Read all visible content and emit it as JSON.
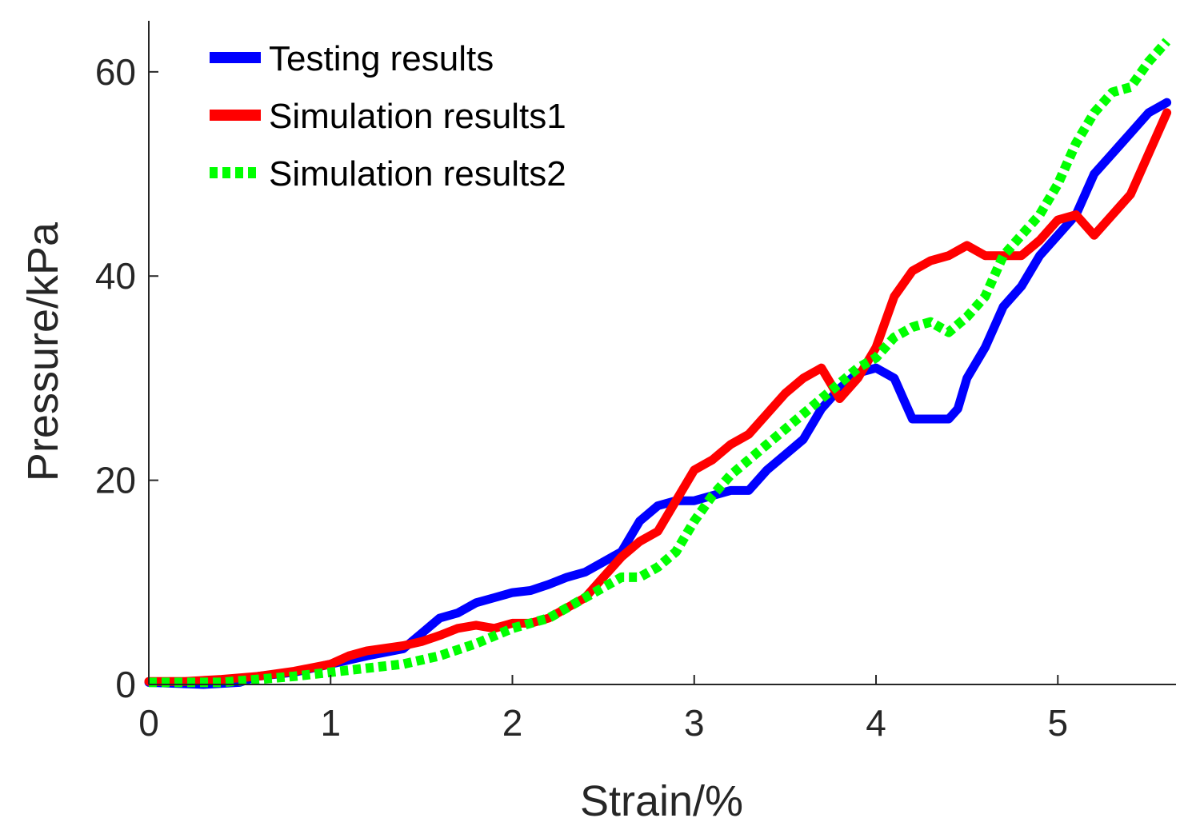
{
  "chart_data": {
    "type": "line",
    "xlabel": "Strain/%",
    "ylabel": "Pressure/kPa",
    "xlim": [
      0,
      5.65
    ],
    "ylim": [
      0,
      65
    ],
    "x_ticks": [
      "0",
      "1",
      "2",
      "3",
      "4",
      "5"
    ],
    "y_ticks": [
      "0",
      "20",
      "40",
      "60"
    ],
    "grid": false,
    "legend_position": "top-left",
    "series": [
      {
        "name": "Testing results",
        "color": "#0000ff",
        "style": "solid",
        "x": [
          0.0,
          0.3,
          0.5,
          0.6,
          0.8,
          1.0,
          1.2,
          1.4,
          1.5,
          1.6,
          1.7,
          1.8,
          1.9,
          2.0,
          2.1,
          2.2,
          2.3,
          2.4,
          2.5,
          2.6,
          2.7,
          2.8,
          2.9,
          3.0,
          3.1,
          3.2,
          3.3,
          3.4,
          3.5,
          3.6,
          3.7,
          3.8,
          3.9,
          4.0,
          4.1,
          4.15,
          4.2,
          4.3,
          4.4,
          4.45,
          4.5,
          4.6,
          4.7,
          4.8,
          4.9,
          5.0,
          5.1,
          5.2,
          5.3,
          5.4,
          5.5,
          5.6
        ],
        "y": [
          0.2,
          0.0,
          0.2,
          0.8,
          1.2,
          2.0,
          2.8,
          3.5,
          5.0,
          6.5,
          7.0,
          8.0,
          8.5,
          9.0,
          9.2,
          9.8,
          10.5,
          11.0,
          12.0,
          13.0,
          16.0,
          17.5,
          18.0,
          18.0,
          18.5,
          19.0,
          19.0,
          21.0,
          22.5,
          24.0,
          27.0,
          29.0,
          30.5,
          31.0,
          30.0,
          28.0,
          26.0,
          26.0,
          26.0,
          27.0,
          30.0,
          33.0,
          37.0,
          39.0,
          42.0,
          44.0,
          46.0,
          50.0,
          52.0,
          54.0,
          56.0,
          57.0
        ]
      },
      {
        "name": "Simulation results1",
        "color": "#ff0000",
        "style": "solid",
        "x": [
          0.0,
          0.2,
          0.4,
          0.6,
          0.8,
          1.0,
          1.1,
          1.2,
          1.4,
          1.5,
          1.6,
          1.7,
          1.8,
          1.9,
          2.0,
          2.1,
          2.2,
          2.3,
          2.4,
          2.5,
          2.6,
          2.7,
          2.8,
          2.9,
          3.0,
          3.1,
          3.2,
          3.3,
          3.4,
          3.5,
          3.6,
          3.7,
          3.8,
          3.9,
          4.0,
          4.1,
          4.2,
          4.3,
          4.4,
          4.5,
          4.6,
          4.7,
          4.8,
          4.9,
          5.0,
          5.1,
          5.2,
          5.3,
          5.4,
          5.5,
          5.6
        ],
        "y": [
          0.3,
          0.3,
          0.5,
          0.8,
          1.3,
          2.0,
          2.8,
          3.3,
          3.8,
          4.2,
          4.8,
          5.5,
          5.8,
          5.5,
          6.0,
          6.0,
          6.5,
          7.5,
          8.5,
          10.5,
          12.5,
          14.0,
          15.0,
          18.0,
          21.0,
          22.0,
          23.5,
          24.5,
          26.5,
          28.5,
          30.0,
          31.0,
          28.0,
          30.0,
          33.0,
          38.0,
          40.5,
          41.5,
          42.0,
          43.0,
          42.0,
          42.0,
          42.0,
          43.5,
          45.5,
          46.0,
          44.0,
          46.0,
          48.0,
          52.0,
          56.0
        ]
      },
      {
        "name": "Simulation results2",
        "color": "#00ff00",
        "style": "dotted",
        "x": [
          0.0,
          0.2,
          0.4,
          0.6,
          0.8,
          1.0,
          1.2,
          1.4,
          1.6,
          1.8,
          2.0,
          2.1,
          2.2,
          2.3,
          2.4,
          2.5,
          2.6,
          2.7,
          2.8,
          2.9,
          3.0,
          3.1,
          3.2,
          3.3,
          3.4,
          3.5,
          3.6,
          3.7,
          3.8,
          3.9,
          4.0,
          4.1,
          4.2,
          4.3,
          4.4,
          4.5,
          4.6,
          4.7,
          4.8,
          4.9,
          5.0,
          5.1,
          5.2,
          5.3,
          5.4,
          5.5,
          5.6
        ],
        "y": [
          0.2,
          0.2,
          0.2,
          0.5,
          0.8,
          1.2,
          1.6,
          2.0,
          2.8,
          4.0,
          5.5,
          6.0,
          6.5,
          7.5,
          8.5,
          9.5,
          10.5,
          10.5,
          11.5,
          13.0,
          16.0,
          18.5,
          20.5,
          22.0,
          23.5,
          25.0,
          26.5,
          28.0,
          29.5,
          31.0,
          32.0,
          34.0,
          35.0,
          35.5,
          34.5,
          36.0,
          38.0,
          42.0,
          44.0,
          46.0,
          49.0,
          53.0,
          56.0,
          58.0,
          58.5,
          61.0,
          63.0
        ]
      }
    ]
  }
}
